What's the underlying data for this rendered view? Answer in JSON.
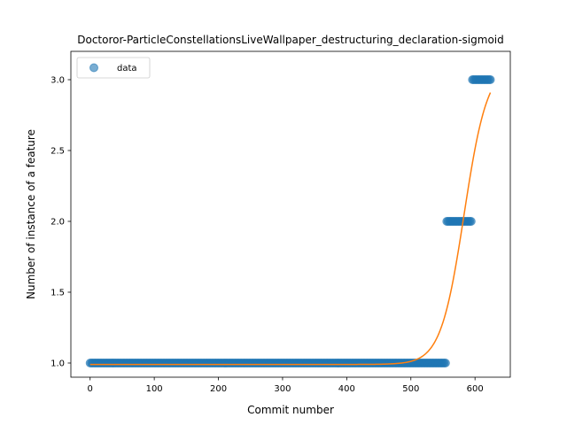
{
  "chart_data": {
    "type": "scatter",
    "title": "Doctoror-ParticleConstellationsLiveWallpaper_destructuring_declaration-sigmoid",
    "xlabel": "Commit number",
    "ylabel": "Number of instance of a feature",
    "xlim": [
      -30,
      655
    ],
    "ylim": [
      0.9,
      3.2
    ],
    "xticks": [
      0,
      100,
      200,
      300,
      400,
      500,
      600
    ],
    "yticks": [
      1.0,
      1.5,
      2.0,
      2.5,
      3.0
    ],
    "ytick_labels": [
      "1.0",
      "1.5",
      "2.0",
      "2.5",
      "3.0"
    ],
    "grid": false,
    "legend": {
      "placement": "top-left",
      "entries": [
        "data"
      ]
    },
    "colors": {
      "data": "#1f77b4",
      "fit": "#ff7f0e"
    },
    "series": [
      {
        "name": "data",
        "kind": "points",
        "segments": [
          {
            "x_start": 0,
            "x_end": 555,
            "y": 1
          },
          {
            "x_start": 556,
            "x_end": 595,
            "y": 2
          },
          {
            "x_start": 596,
            "x_end": 625,
            "y": 3
          }
        ]
      },
      {
        "kind": "line",
        "model": "sigmoid",
        "params": {
          "base": 0.99,
          "amplitude": 2.12,
          "midpoint": 583,
          "rate": 0.055
        },
        "x_range": [
          0,
          625
        ]
      }
    ]
  }
}
